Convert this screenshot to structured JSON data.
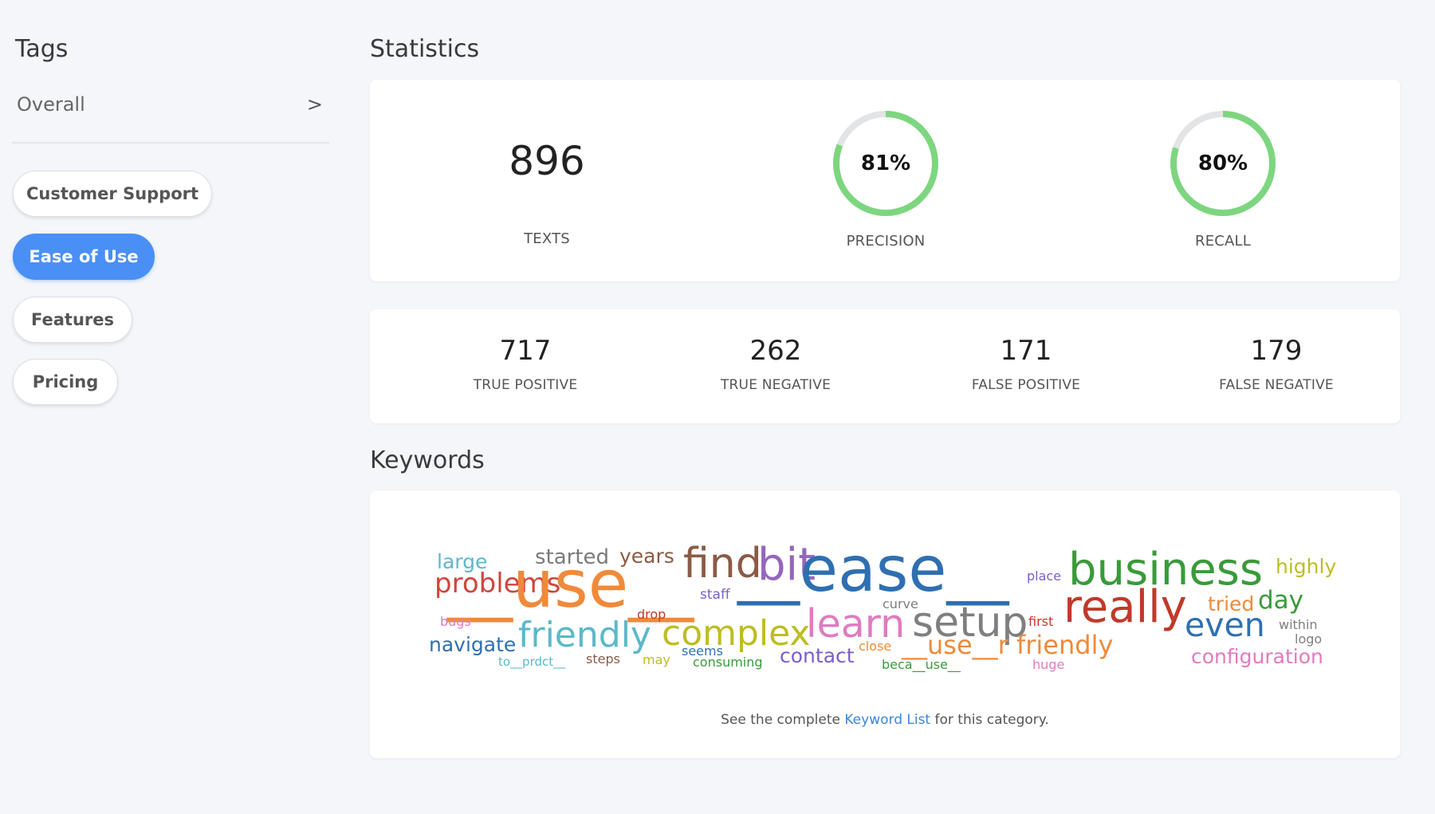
{
  "sidebar": {
    "title": "Tags",
    "overall_label": "Overall",
    "overall_chevron": ">",
    "tags": [
      {
        "label": "Customer Support",
        "active": false
      },
      {
        "label": "Ease of Use",
        "active": true
      },
      {
        "label": "Features",
        "active": false
      },
      {
        "label": "Pricing",
        "active": false
      }
    ]
  },
  "statistics": {
    "title": "Statistics",
    "texts_value": "896",
    "texts_label": "TEXTS",
    "precision_text": "81%",
    "precision_value": 0.81,
    "precision_label": "PRECISION",
    "recall_text": "80%",
    "recall_value": 0.8,
    "recall_label": "RECALL",
    "ring_color": "#7dd67f",
    "ring_track_color": "#e2e4e6"
  },
  "confusion": [
    {
      "value": "717",
      "label": "TRUE POSITIVE"
    },
    {
      "value": "262",
      "label": "TRUE NEGATIVE"
    },
    {
      "value": "171",
      "label": "FALSE POSITIVE"
    },
    {
      "value": "179",
      "label": "FALSE NEGATIVE"
    }
  ],
  "keywords": {
    "title": "Keywords",
    "words": [
      {
        "text": "large",
        "color": "#5bb8c9"
      },
      {
        "text": "started",
        "color": "#7a7a7a"
      },
      {
        "text": "years",
        "color": "#8c5a45"
      },
      {
        "text": "problems",
        "color": "#d0453c"
      },
      {
        "text": "__use__",
        "color": "#ef8a3a"
      },
      {
        "text": "find",
        "color": "#8c5a45"
      },
      {
        "text": "bit",
        "color": "#9467bd"
      },
      {
        "text": "__ease__",
        "color": "#2f6fb0"
      },
      {
        "text": "place",
        "color": "#7b5ec8"
      },
      {
        "text": "business",
        "color": "#3a9a3a"
      },
      {
        "text": "highly",
        "color": "#bdbd22"
      },
      {
        "text": "staff",
        "color": "#7b5ec8"
      },
      {
        "text": "bugs",
        "color": "#e07bbf"
      },
      {
        "text": "drop",
        "color": "#c0392b"
      },
      {
        "text": "curve",
        "color": "#7f7f7f"
      },
      {
        "text": "really",
        "color": "#c0392b"
      },
      {
        "text": "tried",
        "color": "#ef8a3a"
      },
      {
        "text": "day",
        "color": "#3a9a3a"
      },
      {
        "text": "navigate",
        "color": "#2f6fb0"
      },
      {
        "text": "friendly",
        "color": "#5bb8c9"
      },
      {
        "text": "complex",
        "color": "#bdbd22"
      },
      {
        "text": "learn",
        "color": "#e07bbf"
      },
      {
        "text": "setup",
        "color": "#7f7f7f"
      },
      {
        "text": "first",
        "color": "#c0392b"
      },
      {
        "text": "even",
        "color": "#2f6fb0"
      },
      {
        "text": "within",
        "color": "#7f7f7f"
      },
      {
        "text": "logo",
        "color": "#7f7f7f"
      },
      {
        "text": "seems",
        "color": "#2f6fb0"
      },
      {
        "text": "to__prdct__",
        "color": "#5bb8c9"
      },
      {
        "text": "steps",
        "color": "#8c5a45"
      },
      {
        "text": "may",
        "color": "#bdbd22"
      },
      {
        "text": "consuming",
        "color": "#3a9a3a"
      },
      {
        "text": "contact",
        "color": "#7b5ec8"
      },
      {
        "text": "close",
        "color": "#ef8a3a"
      },
      {
        "text": "__use__r friendly",
        "color": "#ef8a3a"
      },
      {
        "text": "beca__use__",
        "color": "#3a9a3a"
      },
      {
        "text": "huge",
        "color": "#e07bbf"
      },
      {
        "text": "configuration",
        "color": "#e07bbf"
      }
    ],
    "footer_prefix": "See the complete",
    "footer_link": "Keyword List",
    "footer_suffix": "for this category."
  }
}
